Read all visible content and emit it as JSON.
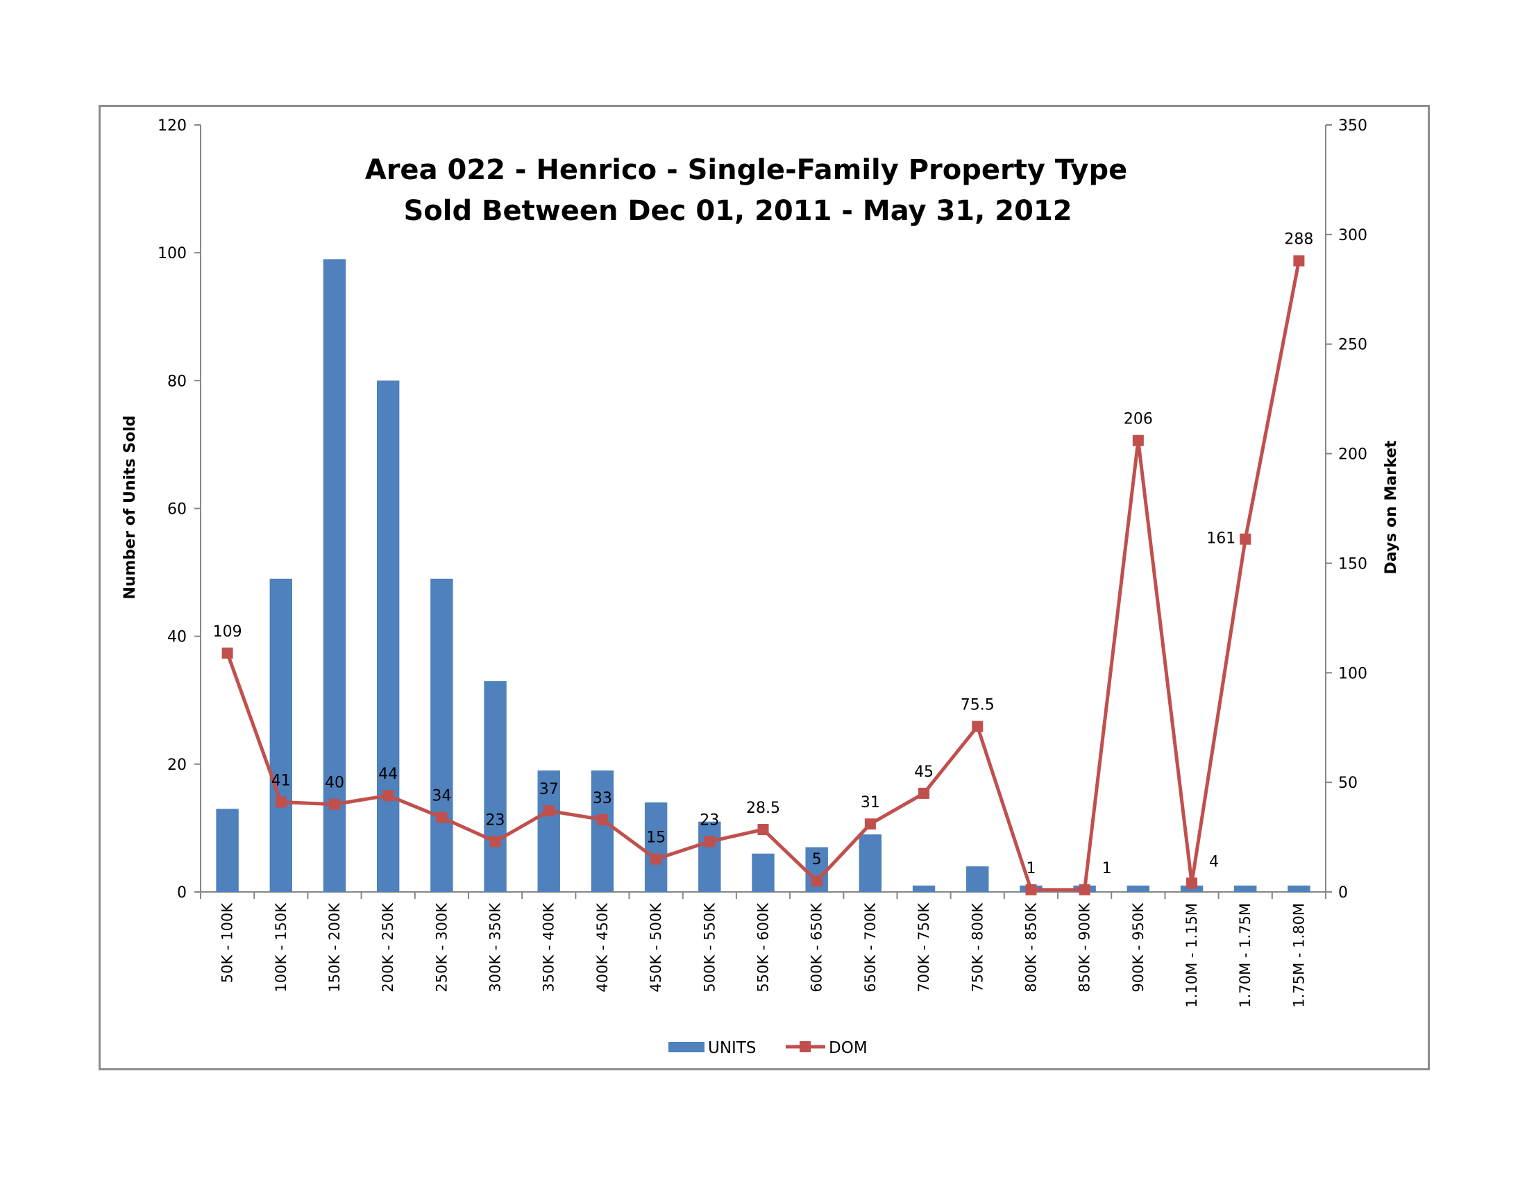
{
  "chart_data": {
    "type": "bar",
    "title": "Area 022 - Henrico - Single-Family Property Type",
    "subtitle": "Sold Between Dec 01, 2011 - May 31, 2012",
    "categories": [
      "50K - 100K",
      "100K - 150K",
      "150K - 200K",
      "200K - 250K",
      "250K - 300K",
      "300K - 350K",
      "350K - 400K",
      "400K - 450K",
      "450K - 500K",
      "500K - 550K",
      "550K - 600K",
      "600K - 650K",
      "650K - 700K",
      "700K - 750K",
      "750K - 800K",
      "800K - 850K",
      "850K - 900K",
      "900K - 950K",
      "1.10M - 1.15M",
      "1.70M - 1.75M",
      "1.75M - 1.80M"
    ],
    "series": [
      {
        "name": "UNITS",
        "type": "bar",
        "axis": "left",
        "color": "#4f81bd",
        "values": [
          13,
          49,
          99,
          80,
          49,
          33,
          19,
          19,
          14,
          11,
          6,
          7,
          9,
          1,
          4,
          1,
          1,
          1,
          1,
          1,
          1
        ]
      },
      {
        "name": "DOM",
        "type": "line",
        "axis": "right",
        "color": "#c0504d",
        "values": [
          109,
          41,
          40,
          44,
          34,
          23,
          37,
          33,
          15,
          23,
          28.5,
          5,
          31,
          45,
          75.5,
          1,
          1,
          206,
          4,
          161,
          288
        ],
        "labels": [
          "109",
          "41",
          "40",
          "44",
          "34",
          "23",
          "37",
          "33",
          "15",
          "23",
          "28.5",
          "5",
          "31",
          "45",
          "75.5",
          "1",
          "1",
          "206",
          "4",
          "161",
          "288"
        ]
      }
    ],
    "ylabel": "Number of Units Sold",
    "y2label": "Days on Market",
    "ylim": [
      0,
      120
    ],
    "y2lim": [
      0,
      350
    ],
    "yticks": [
      "0",
      "20",
      "40",
      "60",
      "80",
      "100",
      "120"
    ],
    "y2ticks": [
      "0",
      "50",
      "100",
      "150",
      "200",
      "250",
      "300",
      "350"
    ],
    "grid": false,
    "legend": "bottom"
  }
}
